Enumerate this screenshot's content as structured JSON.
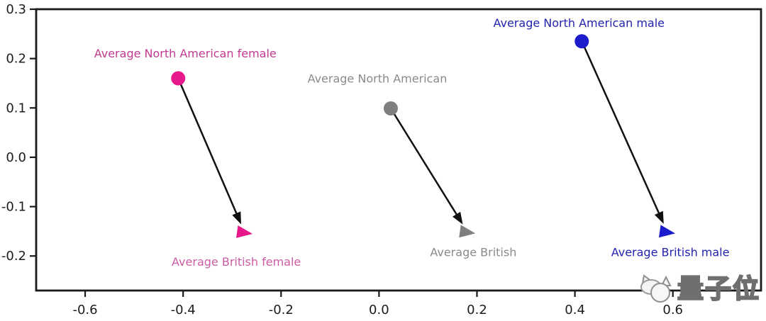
{
  "watermark": {
    "text": "量子位"
  },
  "chart_data": {
    "type": "scatter",
    "title": "",
    "xlabel": "",
    "ylabel": "",
    "grid": false,
    "legend": "none",
    "xlim": [
      -0.7,
      0.78
    ],
    "ylim": [
      -0.27,
      0.3
    ],
    "xticks": [
      "-0.6",
      "-0.4",
      "-0.2",
      "0.0",
      "0.2",
      "0.4",
      "0.6"
    ],
    "yticks": [
      "0.3",
      "0.2",
      "0.1",
      "0.0",
      "-0.1",
      "-0.2"
    ],
    "axis_color": "#1a1a1a",
    "arrow_color": "#111111",
    "series": [
      {
        "group": "female",
        "marker_color": "#e6188c",
        "start": {
          "label": "Average North American female",
          "x": -0.41,
          "y": 0.16,
          "marker": "circle",
          "label_color": "#c23a90",
          "label_offset": [
            10,
            -34
          ]
        },
        "end": {
          "label": "Average British female",
          "x": -0.274,
          "y": -0.153,
          "marker": "triangle-right",
          "label_color": "#ca5ca4",
          "label_offset": [
            -12,
            42
          ]
        }
      },
      {
        "group": "neutral",
        "marker_color": "#7f7f7f",
        "start": {
          "label": "Average North American",
          "x": 0.024,
          "y": 0.099,
          "marker": "circle",
          "label_color": "#8a8a8a",
          "label_offset": [
            -19,
            -41
          ]
        },
        "end": {
          "label": "Average British",
          "x": 0.181,
          "y": -0.152,
          "marker": "triangle-right",
          "label_color": "#8a8a8a",
          "label_offset": [
            8,
            29
          ]
        }
      },
      {
        "group": "male",
        "marker_color": "#1c1ccd",
        "start": {
          "label": "Average North American male",
          "x": 0.414,
          "y": 0.235,
          "marker": "circle",
          "label_color": "#2323ae",
          "label_offset": [
            -4,
            -25
          ]
        },
        "end": {
          "label": "Average British male",
          "x": 0.589,
          "y": -0.152,
          "marker": "triangle-right",
          "label_color": "#2323ae",
          "label_offset": [
            4,
            29
          ]
        }
      }
    ]
  }
}
